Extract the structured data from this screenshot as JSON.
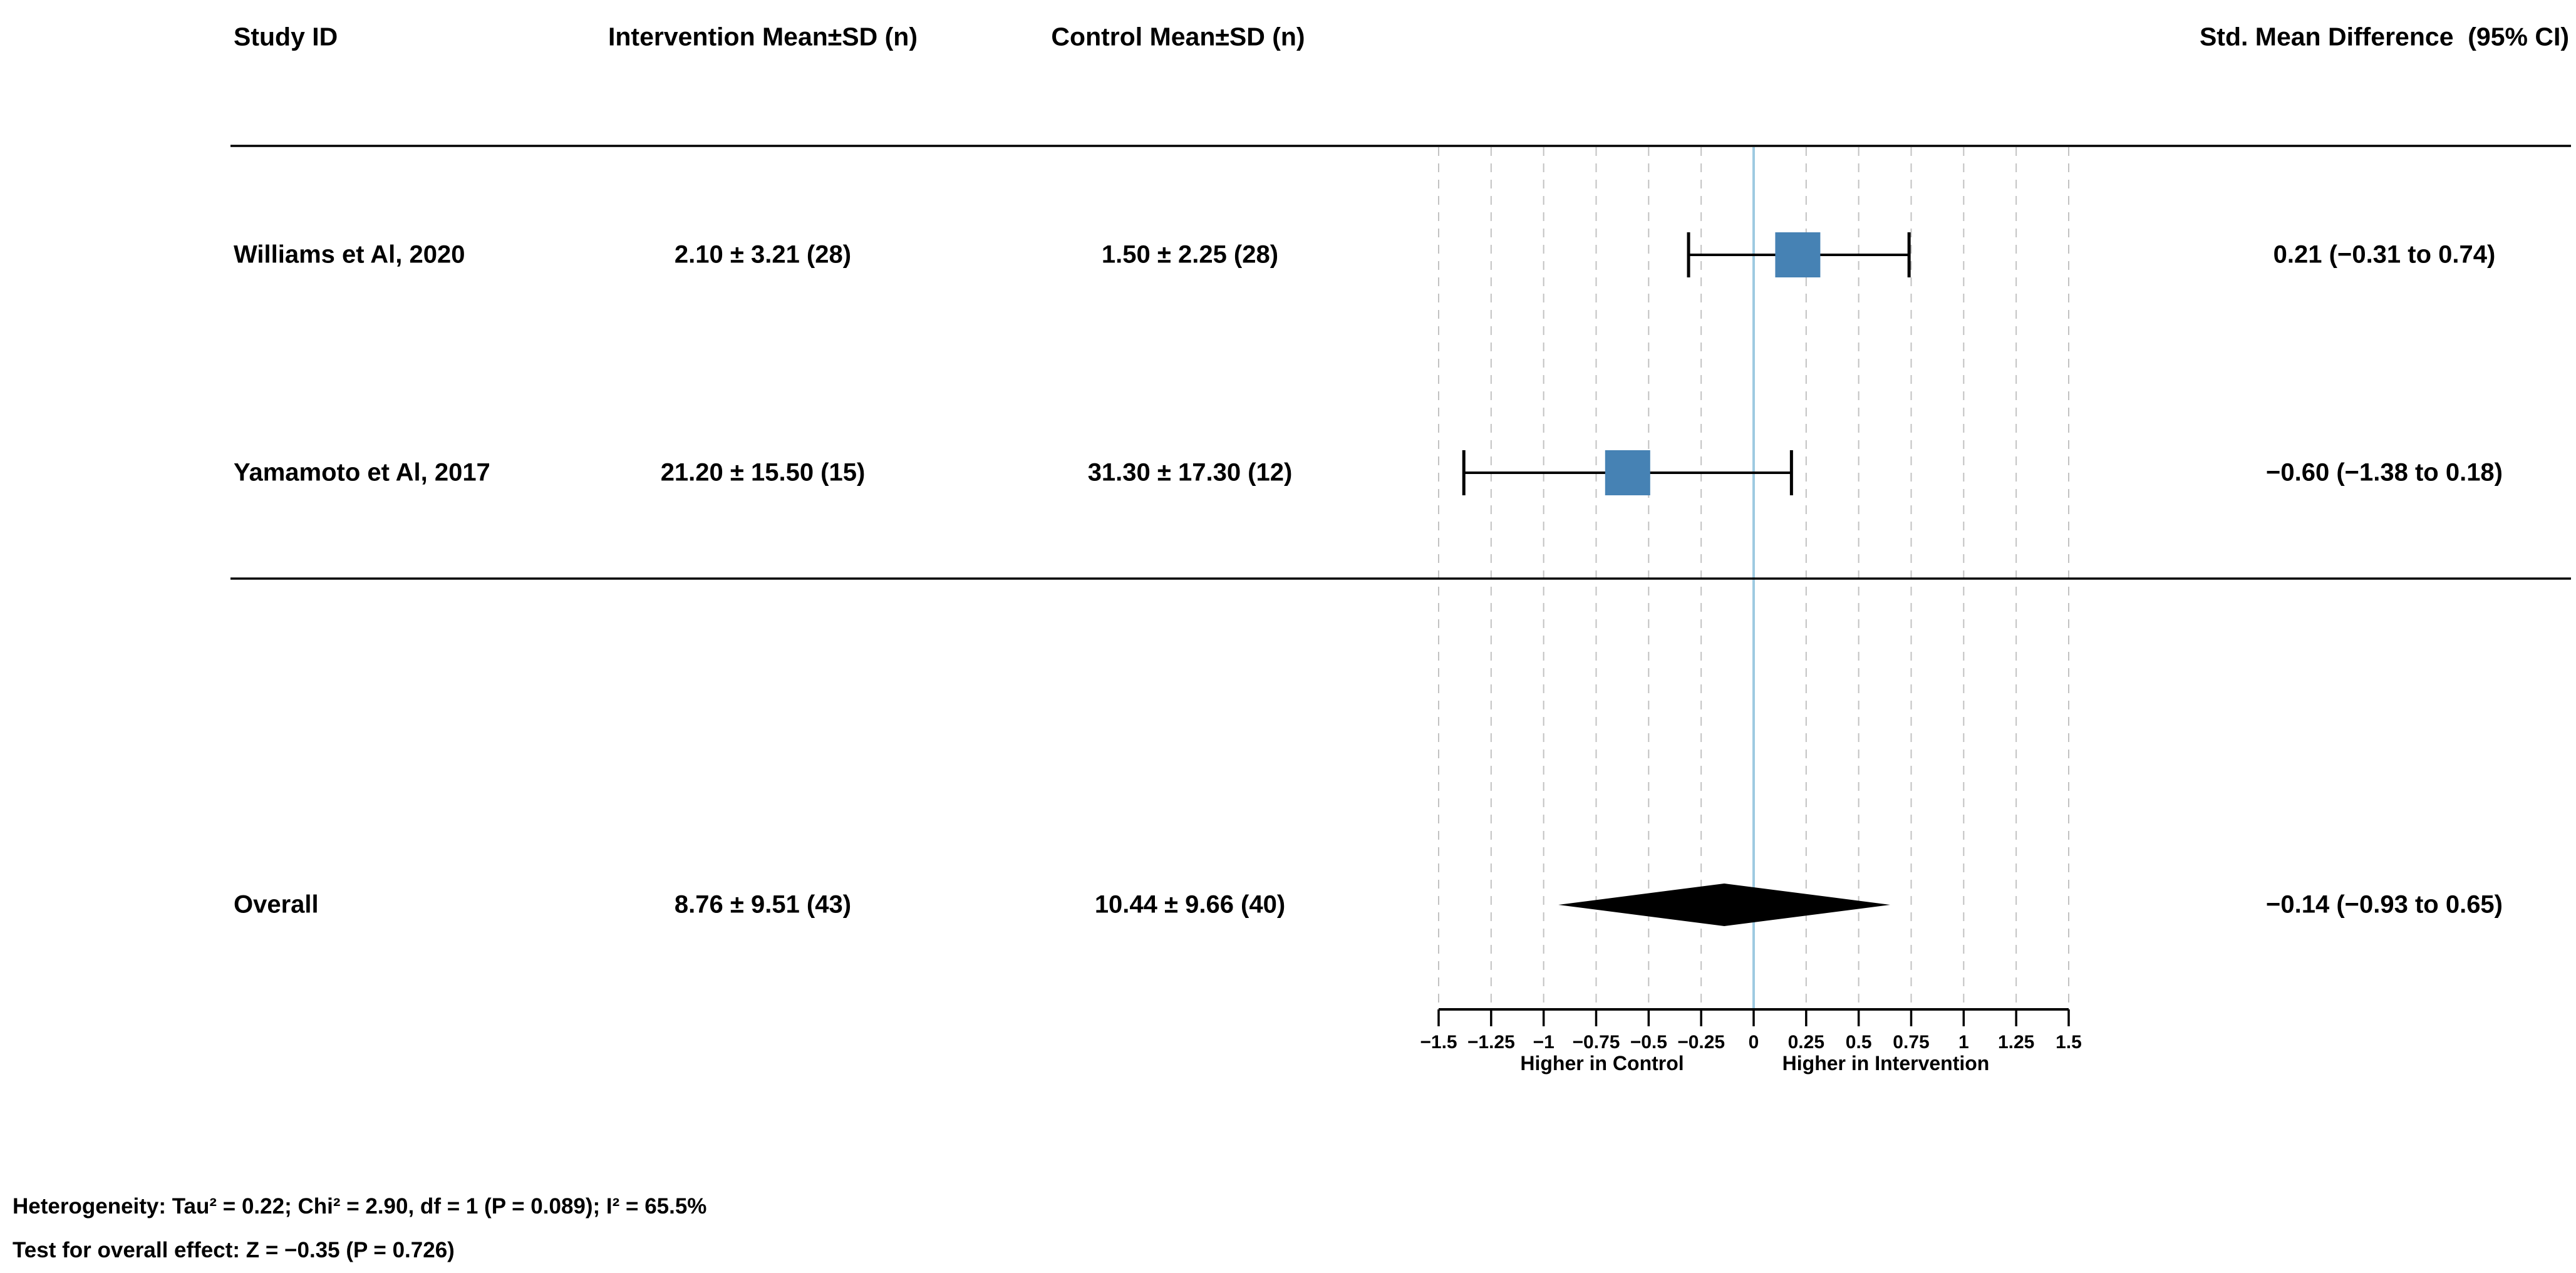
{
  "header": {
    "study_id": "Study ID",
    "intervention": "Intervention Mean±SD (n)",
    "control": "Control Mean±SD (n)",
    "smd": "Std. Mean Difference  (95% CI)"
  },
  "colors": {
    "box": "#4682b4",
    "zero_line": "#9ecae1",
    "grid_line": "#c2c2c2",
    "marks": "#000000",
    "text": "#000000"
  },
  "chart_data": {
    "type": "forest",
    "effect_measure": "Std. Mean Difference (95% CI)",
    "studies": [
      {
        "id": "Williams et Al, 2020",
        "intervention_mean_sd_n": "2.10 ± 3.21 (28)",
        "control_mean_sd_n": "1.50 ± 2.25 (28)",
        "smd": 0.21,
        "ci_low": -0.31,
        "ci_high": 0.74,
        "smd_label": "0.21 (−0.31 to 0.74)"
      },
      {
        "id": "Yamamoto et Al, 2017",
        "intervention_mean_sd_n": "21.20 ± 15.50 (15)",
        "control_mean_sd_n": "31.30 ± 17.30 (12)",
        "smd": -0.6,
        "ci_low": -1.38,
        "ci_high": 0.18,
        "smd_label": "−0.60 (−1.38 to 0.18)"
      }
    ],
    "overall": {
      "id": "Overall",
      "intervention_mean_sd_n": "8.76 ± 9.51 (43)",
      "control_mean_sd_n": "10.44 ± 9.66 (40)",
      "smd": -0.14,
      "ci_low": -0.93,
      "ci_high": 0.65,
      "smd_label": "−0.14 (−0.93 to 0.65)"
    },
    "x_axis": {
      "min": -1.5,
      "max": 1.5,
      "zero_reference": 0,
      "tick_values": [
        -1.5,
        -1.25,
        -1,
        -0.75,
        -0.5,
        -0.25,
        0,
        0.25,
        0.5,
        0.75,
        1,
        1.25,
        1.5
      ],
      "tick_labels": [
        "−1.5",
        "−1.25",
        "−1",
        "−0.75",
        "−0.5",
        "−0.25",
        "0",
        "0.25",
        "0.5",
        "0.75",
        "1",
        "1.25",
        "1.5"
      ],
      "left_direction_label": "Higher in Control",
      "right_direction_label": "Higher in Intervention",
      "grid": "dashed vertical lines at each tick, solid light-blue line at 0"
    },
    "heterogeneity": "Heterogeneity: Tau² = 0.22; Chi² = 2.90, df = 1 (P = 0.089); I² = 65.5%",
    "overall_effect_test": "Test for overall effect: Z = −0.35 (P = 0.726)"
  }
}
